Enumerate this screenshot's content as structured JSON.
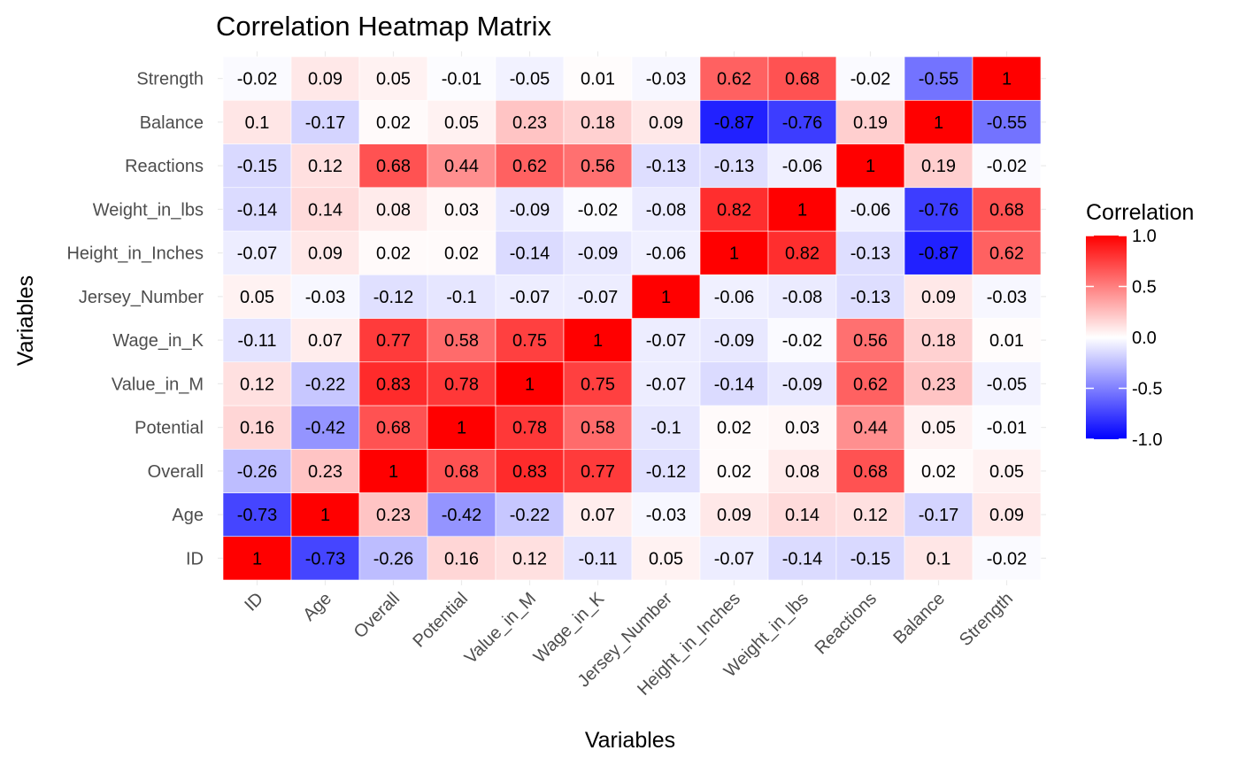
{
  "chart_data": {
    "type": "heatmap",
    "title": "Correlation Heatmap Matrix",
    "xlabel": "Variables",
    "ylabel": "Variables",
    "variables": [
      "ID",
      "Age",
      "Overall",
      "Potential",
      "Value_in_M",
      "Wage_in_K",
      "Jersey_Number",
      "Height_in_Inches",
      "Weight_in_lbs",
      "Reactions",
      "Balance",
      "Strength"
    ],
    "matrix": [
      [
        1,
        -0.73,
        -0.26,
        0.16,
        0.12,
        -0.11,
        0.05,
        -0.07,
        -0.14,
        -0.15,
        0.1,
        -0.02
      ],
      [
        -0.73,
        1,
        0.23,
        -0.42,
        -0.22,
        0.07,
        -0.03,
        0.09,
        0.14,
        0.12,
        -0.17,
        0.09
      ],
      [
        -0.26,
        0.23,
        1,
        0.68,
        0.83,
        0.77,
        -0.12,
        0.02,
        0.08,
        0.68,
        0.02,
        0.05
      ],
      [
        0.16,
        -0.42,
        0.68,
        1,
        0.78,
        0.58,
        -0.1,
        0.02,
        0.03,
        0.44,
        0.05,
        -0.01
      ],
      [
        0.12,
        -0.22,
        0.83,
        0.78,
        1,
        0.75,
        -0.07,
        -0.14,
        -0.09,
        0.62,
        0.23,
        -0.05
      ],
      [
        -0.11,
        0.07,
        0.77,
        0.58,
        0.75,
        1,
        -0.07,
        -0.09,
        -0.02,
        0.56,
        0.18,
        0.01
      ],
      [
        0.05,
        -0.03,
        -0.12,
        -0.1,
        -0.07,
        -0.07,
        1,
        -0.06,
        -0.08,
        -0.13,
        0.09,
        -0.03
      ],
      [
        -0.07,
        0.09,
        0.02,
        0.02,
        -0.14,
        -0.09,
        -0.06,
        1,
        0.82,
        -0.13,
        -0.87,
        0.62
      ],
      [
        -0.14,
        0.14,
        0.08,
        0.03,
        -0.09,
        -0.02,
        -0.08,
        0.82,
        1,
        -0.06,
        -0.76,
        0.68
      ],
      [
        -0.15,
        0.12,
        0.68,
        0.44,
        0.62,
        0.56,
        -0.13,
        -0.13,
        -0.06,
        1,
        0.19,
        -0.02
      ],
      [
        0.1,
        -0.17,
        0.02,
        0.05,
        0.23,
        0.18,
        0.09,
        -0.87,
        -0.76,
        0.19,
        1,
        -0.55
      ],
      [
        -0.02,
        0.09,
        0.05,
        -0.01,
        -0.05,
        0.01,
        -0.03,
        0.62,
        0.68,
        -0.02,
        -0.55,
        1
      ]
    ],
    "color_scale": {
      "low": "#0000ff",
      "mid": "#ffffff",
      "high": "#ff0000",
      "range": [
        -1,
        1
      ]
    },
    "legend": {
      "title": "Correlation",
      "ticks": [
        1.0,
        0.5,
        0.0,
        -0.5,
        -1.0
      ],
      "tick_labels": [
        "1.0",
        "0.5",
        "0.0",
        "-0.5",
        "-1.0"
      ],
      "placement": "right"
    },
    "grid": true
  }
}
